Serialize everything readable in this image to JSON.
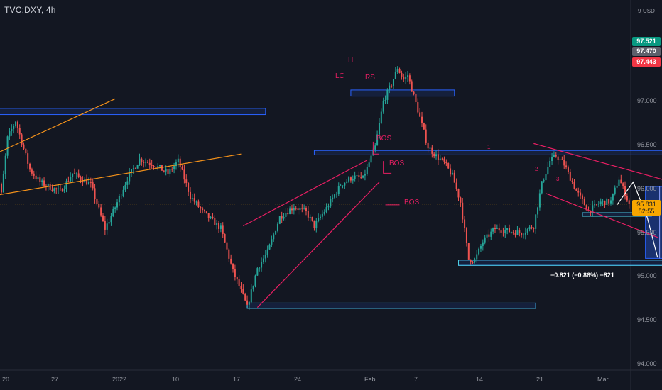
{
  "window": {
    "title": "TVC:DXY, 4h"
  },
  "price_axis": {
    "currency": "USD",
    "currency_prefix": "9",
    "ticks": [
      "97.000",
      "96.500",
      "96.000",
      "95.500",
      "95.000",
      "94.500",
      "94.000"
    ],
    "tags": [
      {
        "label": "97.521",
        "value": 97.521,
        "color": "#089981"
      },
      {
        "label": "97.470",
        "value": 97.47,
        "color": "#5d606b"
      },
      {
        "label": "97.443",
        "value": 97.443,
        "color": "#f23645"
      }
    ],
    "last_price": {
      "value_label": "95.831",
      "countdown": "52:55",
      "value": 95.831
    }
  },
  "time_axis": {
    "ticks": [
      "20",
      "27",
      "2022",
      "10",
      "17",
      "24",
      "Feb",
      "7",
      "14",
      "21",
      "Mar"
    ]
  },
  "annotations": {
    "lc": "LC",
    "h": "H",
    "rs": "RS",
    "bos": [
      "BOS",
      "BOS",
      "BOS"
    ],
    "waypoints": [
      "1",
      "2",
      "3"
    ],
    "measure": "−0.821 (−0.86%) −821"
  },
  "colors": {
    "background": "#131722",
    "up": "#26a69a",
    "down": "#ef5350",
    "zone": "#2962ff",
    "zone_fill": "#1e3a8a",
    "trendline_orange": "#f7931a",
    "pattern_pink": "#e91e63",
    "last_price": "#f7a600"
  },
  "chart_data": {
    "type": "candlestick",
    "title": "TVC:DXY, 4h",
    "ylim": [
      93.9,
      97.9
    ],
    "y_ticks": [
      94.0,
      94.5,
      95.0,
      95.5,
      96.0,
      96.5,
      97.0
    ],
    "x_ticks": [
      "20",
      "27",
      "2022",
      "10",
      "17",
      "24",
      "Feb",
      "7",
      "14",
      "21",
      "Mar"
    ],
    "anchors": [
      [
        -5,
        96.52
      ],
      [
        0,
        95.94
      ],
      [
        3,
        96.58
      ],
      [
        7,
        96.78
      ],
      [
        9,
        96.62
      ],
      [
        14,
        96.22
      ],
      [
        19,
        96.08
      ],
      [
        24,
        96.02
      ],
      [
        29,
        95.97
      ],
      [
        35,
        96.18
      ],
      [
        44,
        96.05
      ],
      [
        51,
        95.55
      ],
      [
        55,
        95.74
      ],
      [
        62,
        96.12
      ],
      [
        68,
        96.34
      ],
      [
        75,
        96.28
      ],
      [
        82,
        96.18
      ],
      [
        87,
        96.32
      ],
      [
        93,
        95.92
      ],
      [
        99,
        95.74
      ],
      [
        108,
        95.55
      ],
      [
        114,
        95.06
      ],
      [
        119,
        94.78
      ],
      [
        121,
        94.65
      ],
      [
        126,
        95.1
      ],
      [
        131,
        95.28
      ],
      [
        137,
        95.68
      ],
      [
        144,
        95.8
      ],
      [
        150,
        95.74
      ],
      [
        154,
        95.58
      ],
      [
        160,
        95.78
      ],
      [
        167,
        96.05
      ],
      [
        173,
        96.14
      ],
      [
        178,
        96.12
      ],
      [
        184,
        96.48
      ],
      [
        188,
        97.0
      ],
      [
        192,
        97.2
      ],
      [
        195,
        97.38
      ],
      [
        198,
        97.25
      ],
      [
        200,
        97.3
      ],
      [
        205,
        96.9
      ],
      [
        210,
        96.48
      ],
      [
        214,
        96.38
      ],
      [
        218,
        96.3
      ],
      [
        222,
        96.15
      ],
      [
        226,
        95.85
      ],
      [
        230,
        95.2
      ],
      [
        233,
        95.19
      ],
      [
        237,
        95.4
      ],
      [
        243,
        95.55
      ],
      [
        250,
        95.52
      ],
      [
        256,
        95.5
      ],
      [
        262,
        95.58
      ],
      [
        266,
        96.06
      ],
      [
        270,
        96.32
      ],
      [
        273,
        96.38
      ],
      [
        277,
        96.28
      ],
      [
        283,
        95.98
      ],
      [
        289,
        95.75
      ],
      [
        295,
        95.85
      ],
      [
        300,
        95.86
      ],
      [
        304,
        96.12
      ],
      [
        307,
        95.95
      ],
      [
        309,
        95.83
      ]
    ],
    "zones": [
      {
        "t0": -5,
        "t1": 130,
        "y0": 96.85,
        "y1": 96.92
      },
      {
        "t0": 172,
        "t1": 223,
        "y0": 97.06,
        "y1": 97.13
      },
      {
        "t0": 154,
        "t1": 335,
        "y0": 96.39,
        "y1": 96.44
      },
      {
        "t0": 286,
        "t1": 320,
        "y0": 95.69,
        "y1": 95.73
      },
      {
        "t0": 225,
        "t1": 340,
        "y0": 95.13,
        "y1": 95.19
      },
      {
        "t0": 121,
        "t1": 263,
        "y0": 94.64,
        "y1": 94.7
      }
    ],
    "trendlines": [
      {
        "color": "orange",
        "t0": -5,
        "y0": 96.38,
        "t1": 56,
        "y1": 97.03
      },
      {
        "color": "orange",
        "t0": -5,
        "y0": 95.92,
        "t1": 118,
        "y1": 96.4
      },
      {
        "color": "pink",
        "t0": 119,
        "y0": 95.58,
        "t1": 180,
        "y1": 96.33
      },
      {
        "color": "pink",
        "t0": 126,
        "y0": 94.65,
        "t1": 186,
        "y1": 96.08
      },
      {
        "color": "pink",
        "t0": 262,
        "y0": 96.52,
        "t1": 330,
        "y1": 96.08
      },
      {
        "color": "pink",
        "t0": 268,
        "y0": 95.95,
        "t1": 323,
        "y1": 95.45
      }
    ],
    "projection": [
      [
        303,
        95.82
      ],
      [
        311,
        96.08
      ],
      [
        318,
        95.67
      ],
      [
        323,
        95.22
      ]
    ],
    "measure_box": {
      "t0": 317,
      "t1": 331,
      "y0": 95.21,
      "y1": 96.03
    }
  }
}
